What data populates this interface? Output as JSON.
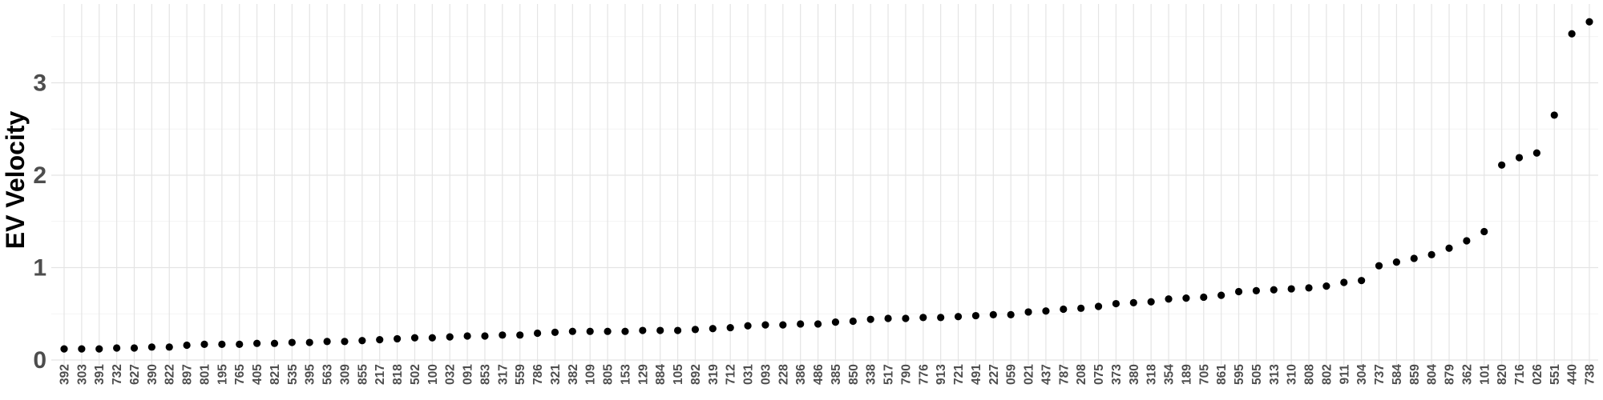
{
  "chart_data": {
    "type": "scatter",
    "title": "",
    "xlabel": "",
    "ylabel": "EV Velocity",
    "ylim": [
      0,
      3.75
    ],
    "yticks": [
      "0",
      "1",
      "2",
      "3"
    ],
    "grid": true,
    "legend": "none",
    "point_color": "#000000",
    "categories": [
      "392",
      "303",
      "391",
      "732",
      "627",
      "390",
      "822",
      "897",
      "801",
      "195",
      "765",
      "405",
      "821",
      "535",
      "395",
      "563",
      "309",
      "855",
      "217",
      "818",
      "502",
      "100",
      "032",
      "091",
      "853",
      "317",
      "559",
      "786",
      "321",
      "382",
      "109",
      "805",
      "153",
      "129",
      "884",
      "105",
      "892",
      "319",
      "712",
      "031",
      "093",
      "228",
      "386",
      "486",
      "385",
      "850",
      "338",
      "517",
      "790",
      "776",
      "913",
      "721",
      "491",
      "227",
      "059",
      "021",
      "437",
      "787",
      "208",
      "075",
      "373",
      "380",
      "318",
      "354",
      "189",
      "705",
      "861",
      "595",
      "505",
      "313",
      "310",
      "808",
      "802",
      "911",
      "304",
      "737",
      "584",
      "859",
      "804",
      "879",
      "362",
      "101",
      "820",
      "716",
      "026",
      "551",
      "440",
      "738"
    ],
    "values": [
      0.12,
      0.12,
      0.12,
      0.13,
      0.13,
      0.14,
      0.14,
      0.16,
      0.17,
      0.17,
      0.17,
      0.18,
      0.18,
      0.19,
      0.19,
      0.2,
      0.2,
      0.21,
      0.22,
      0.23,
      0.24,
      0.24,
      0.25,
      0.26,
      0.26,
      0.27,
      0.27,
      0.29,
      0.3,
      0.31,
      0.31,
      0.31,
      0.31,
      0.32,
      0.32,
      0.32,
      0.33,
      0.34,
      0.35,
      0.37,
      0.38,
      0.38,
      0.39,
      0.39,
      0.41,
      0.42,
      0.44,
      0.45,
      0.45,
      0.46,
      0.46,
      0.47,
      0.48,
      0.49,
      0.49,
      0.52,
      0.53,
      0.55,
      0.56,
      0.58,
      0.61,
      0.62,
      0.63,
      0.66,
      0.67,
      0.68,
      0.7,
      0.74,
      0.75,
      0.76,
      0.77,
      0.78,
      0.8,
      0.84,
      0.86,
      1.02,
      1.06,
      1.1,
      1.14,
      1.21,
      1.29,
      1.39,
      2.11,
      2.19,
      2.24,
      2.65,
      3.53,
      3.66
    ]
  }
}
